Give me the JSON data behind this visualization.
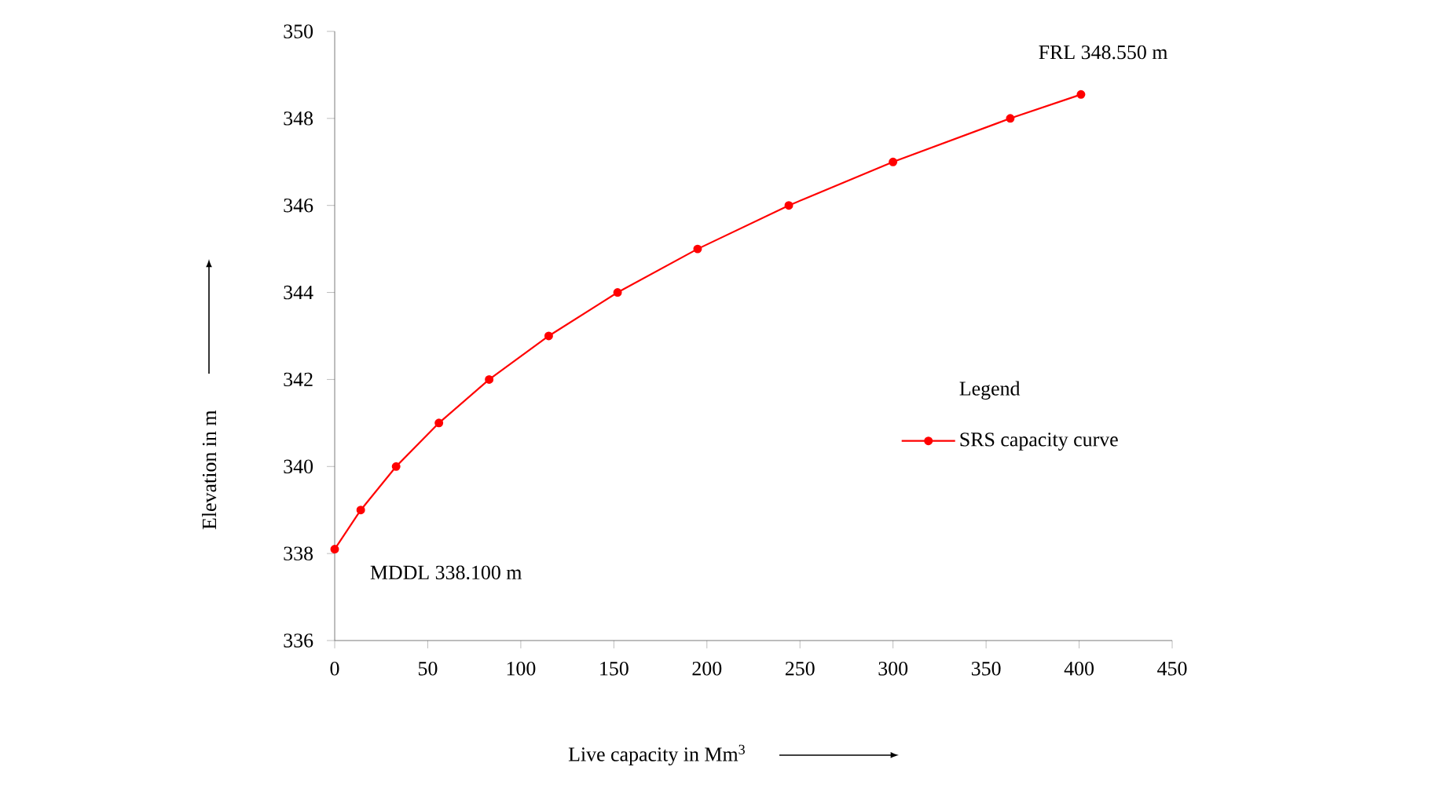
{
  "chart_data": {
    "type": "line",
    "xlabel": "Live capacity in Mm$^{3}$",
    "ylabel": "Elevation in m",
    "legend_title": "Legend",
    "x": [
      0,
      14,
      33,
      56,
      83,
      115,
      152,
      195,
      244,
      300,
      363,
      401
    ],
    "series": [
      {
        "name": "SRS capacity curve",
        "color": "#ff0000",
        "values": [
          338.1,
          339,
          340,
          341,
          342,
          343,
          344,
          345,
          346,
          347,
          348,
          348.55
        ]
      }
    ],
    "xlim": [
      0,
      450
    ],
    "xticks": [
      0,
      50,
      100,
      150,
      200,
      250,
      300,
      350,
      400,
      450
    ],
    "ylim": [
      336,
      350
    ],
    "yticks": [
      336,
      338,
      340,
      342,
      344,
      346,
      348,
      350
    ],
    "annotations": [
      {
        "text": "FRL 348.550 m",
        "x": 401,
        "y": 348.55
      },
      {
        "text": "MDDL 338.100  m",
        "x": 0,
        "y": 338.1
      }
    ],
    "grid": false,
    "legend": "right",
    "marker": "circle",
    "line_style": "solid"
  }
}
